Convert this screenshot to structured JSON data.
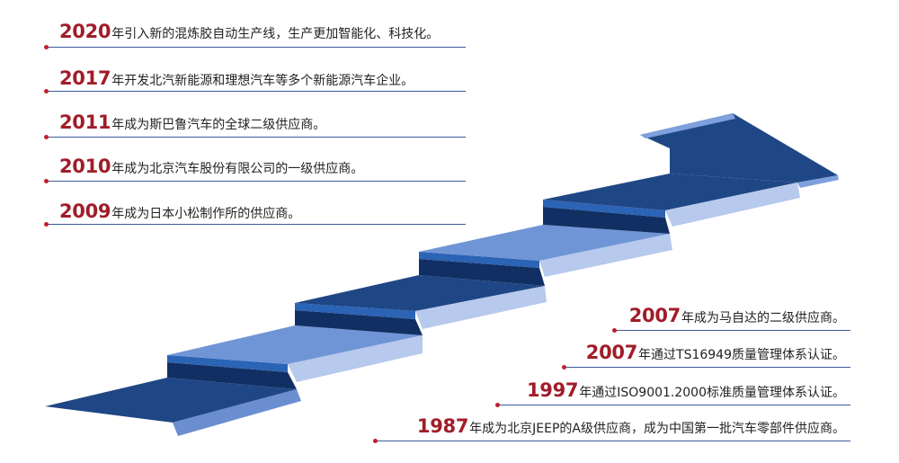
{
  "colors": {
    "year": "#a01d28",
    "text": "#222222",
    "rule": "#3a5a9c",
    "dot": "#c0202a",
    "step_dark": "#1f4785",
    "step_mid": "#2b63b5",
    "step_light": "#7ea0dc"
  },
  "milestones_left": [
    {
      "year": "2020",
      "text": "年引入新的混炼胶自动生产线，生产更加智能化、科技化。"
    },
    {
      "year": "2017",
      "text": "年开发北汽新能源和理想汽车等多个新能源汽车企业。"
    },
    {
      "year": "2011",
      "text": "年成为斯巴鲁汽车的全球二级供应商。"
    },
    {
      "year": "2010",
      "text": "年成为北京汽车股份有限公司的一级供应商。"
    },
    {
      "year": "2009",
      "text": "年成为日本小松制作所的供应商。"
    }
  ],
  "milestones_right": [
    {
      "year": "2007",
      "text": "年成为马自达的二级供应商。"
    },
    {
      "year": "2007",
      "text": "年通过TS16949质量管理体系认证。"
    },
    {
      "year": "1997",
      "text": "年通过ISO9001.2000标准质量管理体系认证。"
    },
    {
      "year": "1987",
      "text": "年成为北京JEEP的A级供应商，成为中国第一批汽车零部件供应商。"
    }
  ]
}
